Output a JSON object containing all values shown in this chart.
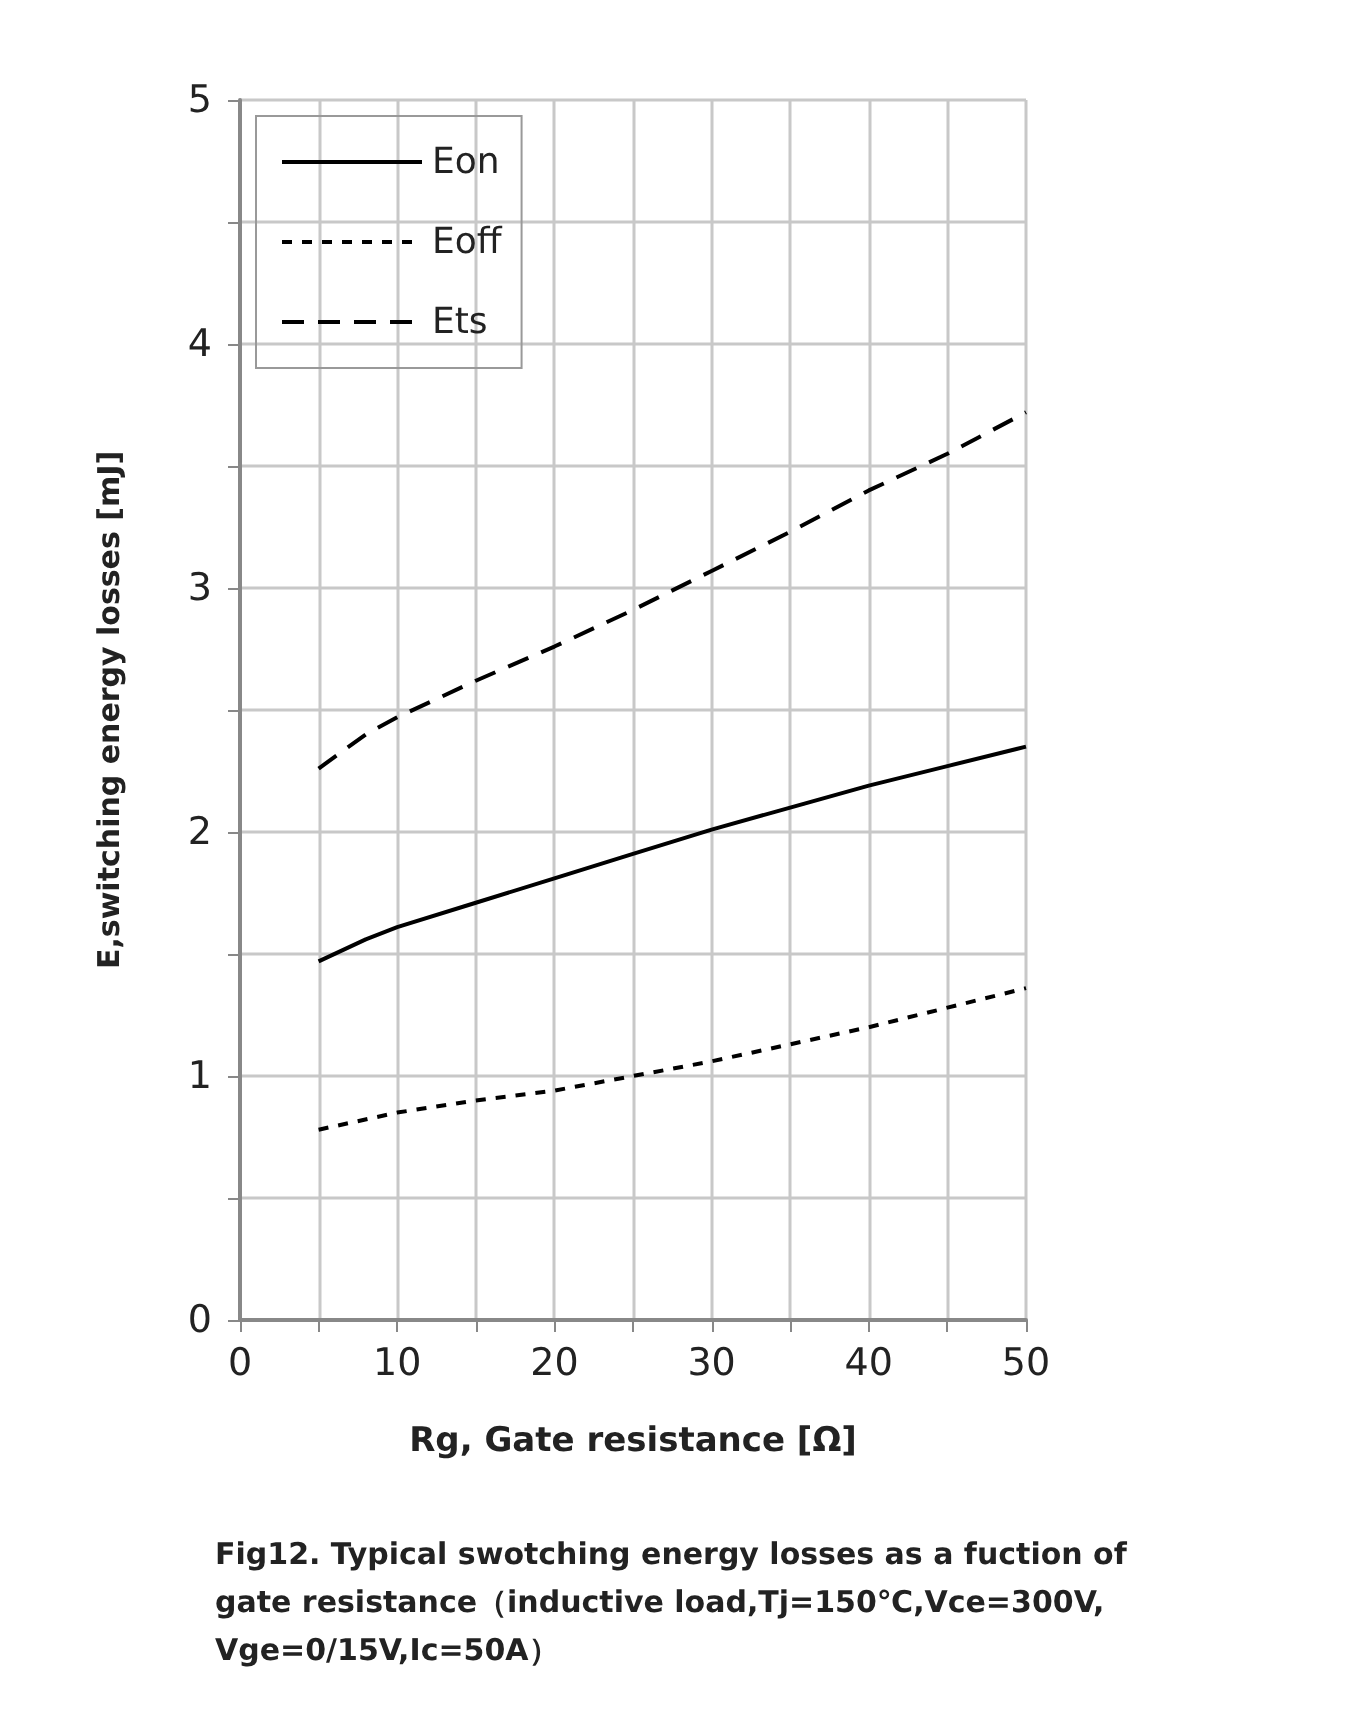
{
  "chart_data": {
    "type": "line",
    "xlabel": "Rg, Gate resistance [Ω]",
    "ylabel": "E,switching energy losses [mJ]",
    "annotations": [
      "Fig12. Typical swotching energy losses as a fuction of gate resistance（inductive load,Tj=150℃,Vce=300V, Vge=0/15V,Ic=50A）"
    ],
    "series": [
      {
        "name": "Eon",
        "color": "#000000",
        "line_style": "solid",
        "x": [
          5,
          8,
          10,
          15,
          20,
          25,
          30,
          35,
          40,
          45,
          50
        ],
        "values": [
          1.47,
          1.56,
          1.61,
          1.71,
          1.81,
          1.91,
          2.01,
          2.1,
          2.19,
          2.27,
          2.35
        ]
      },
      {
        "name": "Eoff",
        "color": "#000000",
        "line_style": "dotted",
        "x": [
          5,
          10,
          15,
          20,
          25,
          30,
          35,
          40,
          45,
          50
        ],
        "values": [
          0.78,
          0.85,
          0.9,
          0.94,
          1.0,
          1.06,
          1.13,
          1.2,
          1.28,
          1.36
        ]
      },
      {
        "name": "Ets",
        "color": "#000000",
        "line_style": "dashed",
        "x": [
          5,
          8,
          10,
          15,
          20,
          25,
          30,
          35,
          40,
          45,
          50
        ],
        "values": [
          2.26,
          2.4,
          2.47,
          2.62,
          2.76,
          2.91,
          3.07,
          3.23,
          3.4,
          3.55,
          3.72
        ]
      }
    ],
    "xlim": [
      0,
      50
    ],
    "xticks": [
      0,
      {
        "value": 5,
        "label": null
      },
      10,
      {
        "value": 15,
        "label": null
      },
      20,
      {
        "value": 25,
        "label": null
      },
      30,
      {
        "value": 35,
        "label": null
      },
      40,
      {
        "value": 45,
        "label": null
      },
      50
    ],
    "ylim": [
      0,
      5
    ],
    "yticks": [
      0,
      {
        "value": 0.5,
        "label": null
      },
      1,
      {
        "value": 1.5,
        "label": null
      },
      2,
      {
        "value": 2.5,
        "label": null
      },
      3,
      {
        "value": 3.5,
        "label": null
      },
      4,
      {
        "value": 4.5,
        "label": null
      },
      5
    ],
    "grid": true,
    "legend": "top left",
    "marker": "none"
  }
}
